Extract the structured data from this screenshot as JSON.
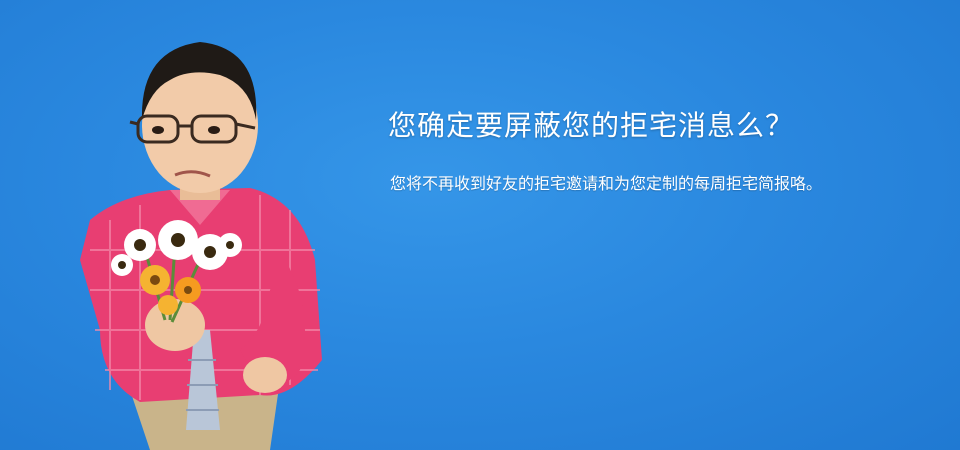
{
  "banner": {
    "headline": "您确定要屏蔽您的拒宅消息么？",
    "description": "您将不再收到好友的拒宅邀请和为您定制的每周拒宅简报咯。",
    "background_color": "#2b8ae0",
    "text_color": "#ffffff"
  },
  "illustration": {
    "icon": "man-holding-flowers"
  }
}
